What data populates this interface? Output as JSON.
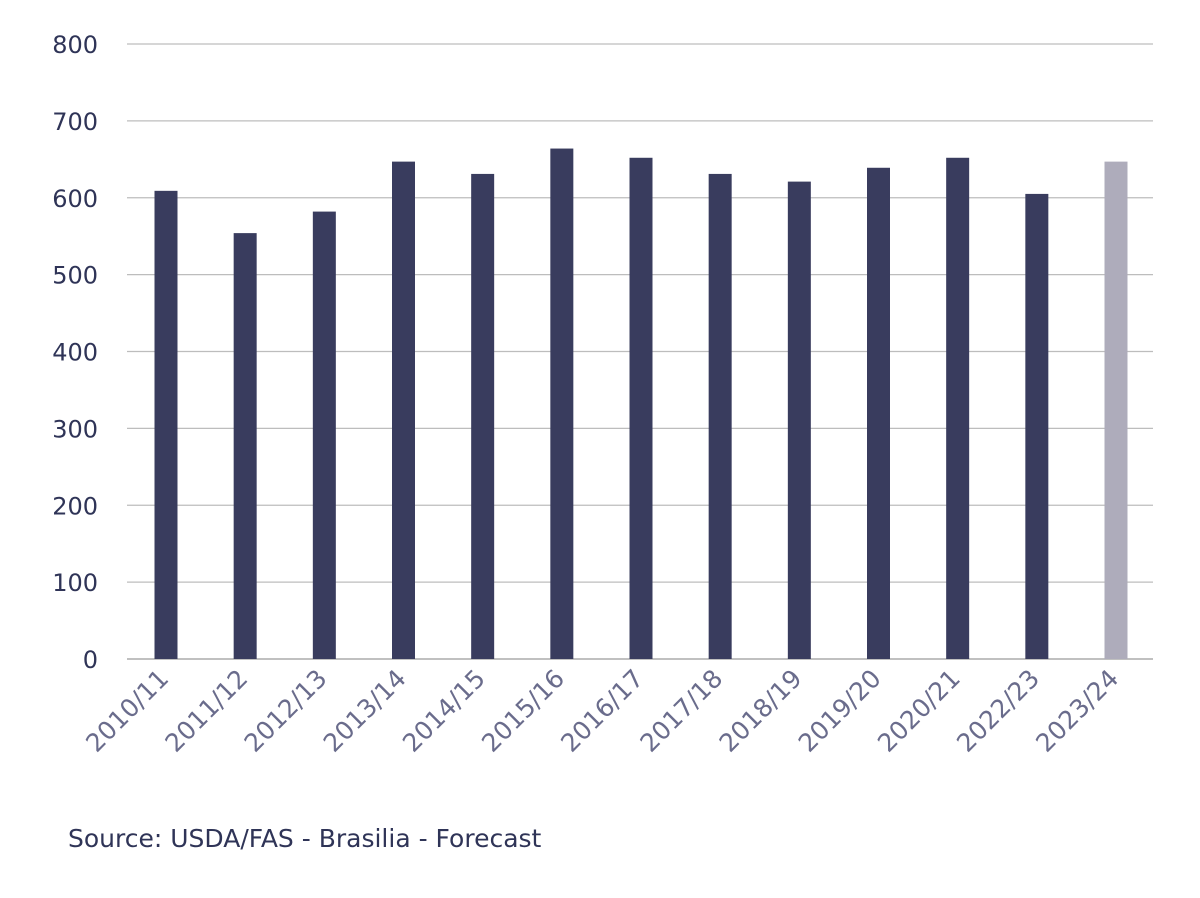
{
  "colors": {
    "bar": "#393c5e",
    "bar_forecast": "#aeacbb",
    "tick_label": "#2f3457",
    "x_tick_label": "#6a6c8c",
    "grid": "#bdbdbd"
  },
  "chart_data": {
    "type": "bar",
    "title": "",
    "xlabel": "",
    "ylabel": "",
    "ylim": [
      0,
      800
    ],
    "yticks": [
      0,
      100,
      200,
      300,
      400,
      500,
      600,
      700,
      800
    ],
    "grid": true,
    "categories": [
      "2010/11",
      "2011/12",
      "2012/13",
      "2013/14",
      "2014/15",
      "2015/16",
      "2016/17",
      "2017/18",
      "2018/19",
      "2019/20",
      "2020/21",
      "2022/23",
      "2023/24"
    ],
    "values": [
      609,
      554,
      582,
      647,
      631,
      664,
      652,
      631,
      621,
      639,
      652,
      605,
      647
    ],
    "forecast_category": "2023/24"
  },
  "source": "Source: USDA/FAS - Brasilia - Forecast"
}
